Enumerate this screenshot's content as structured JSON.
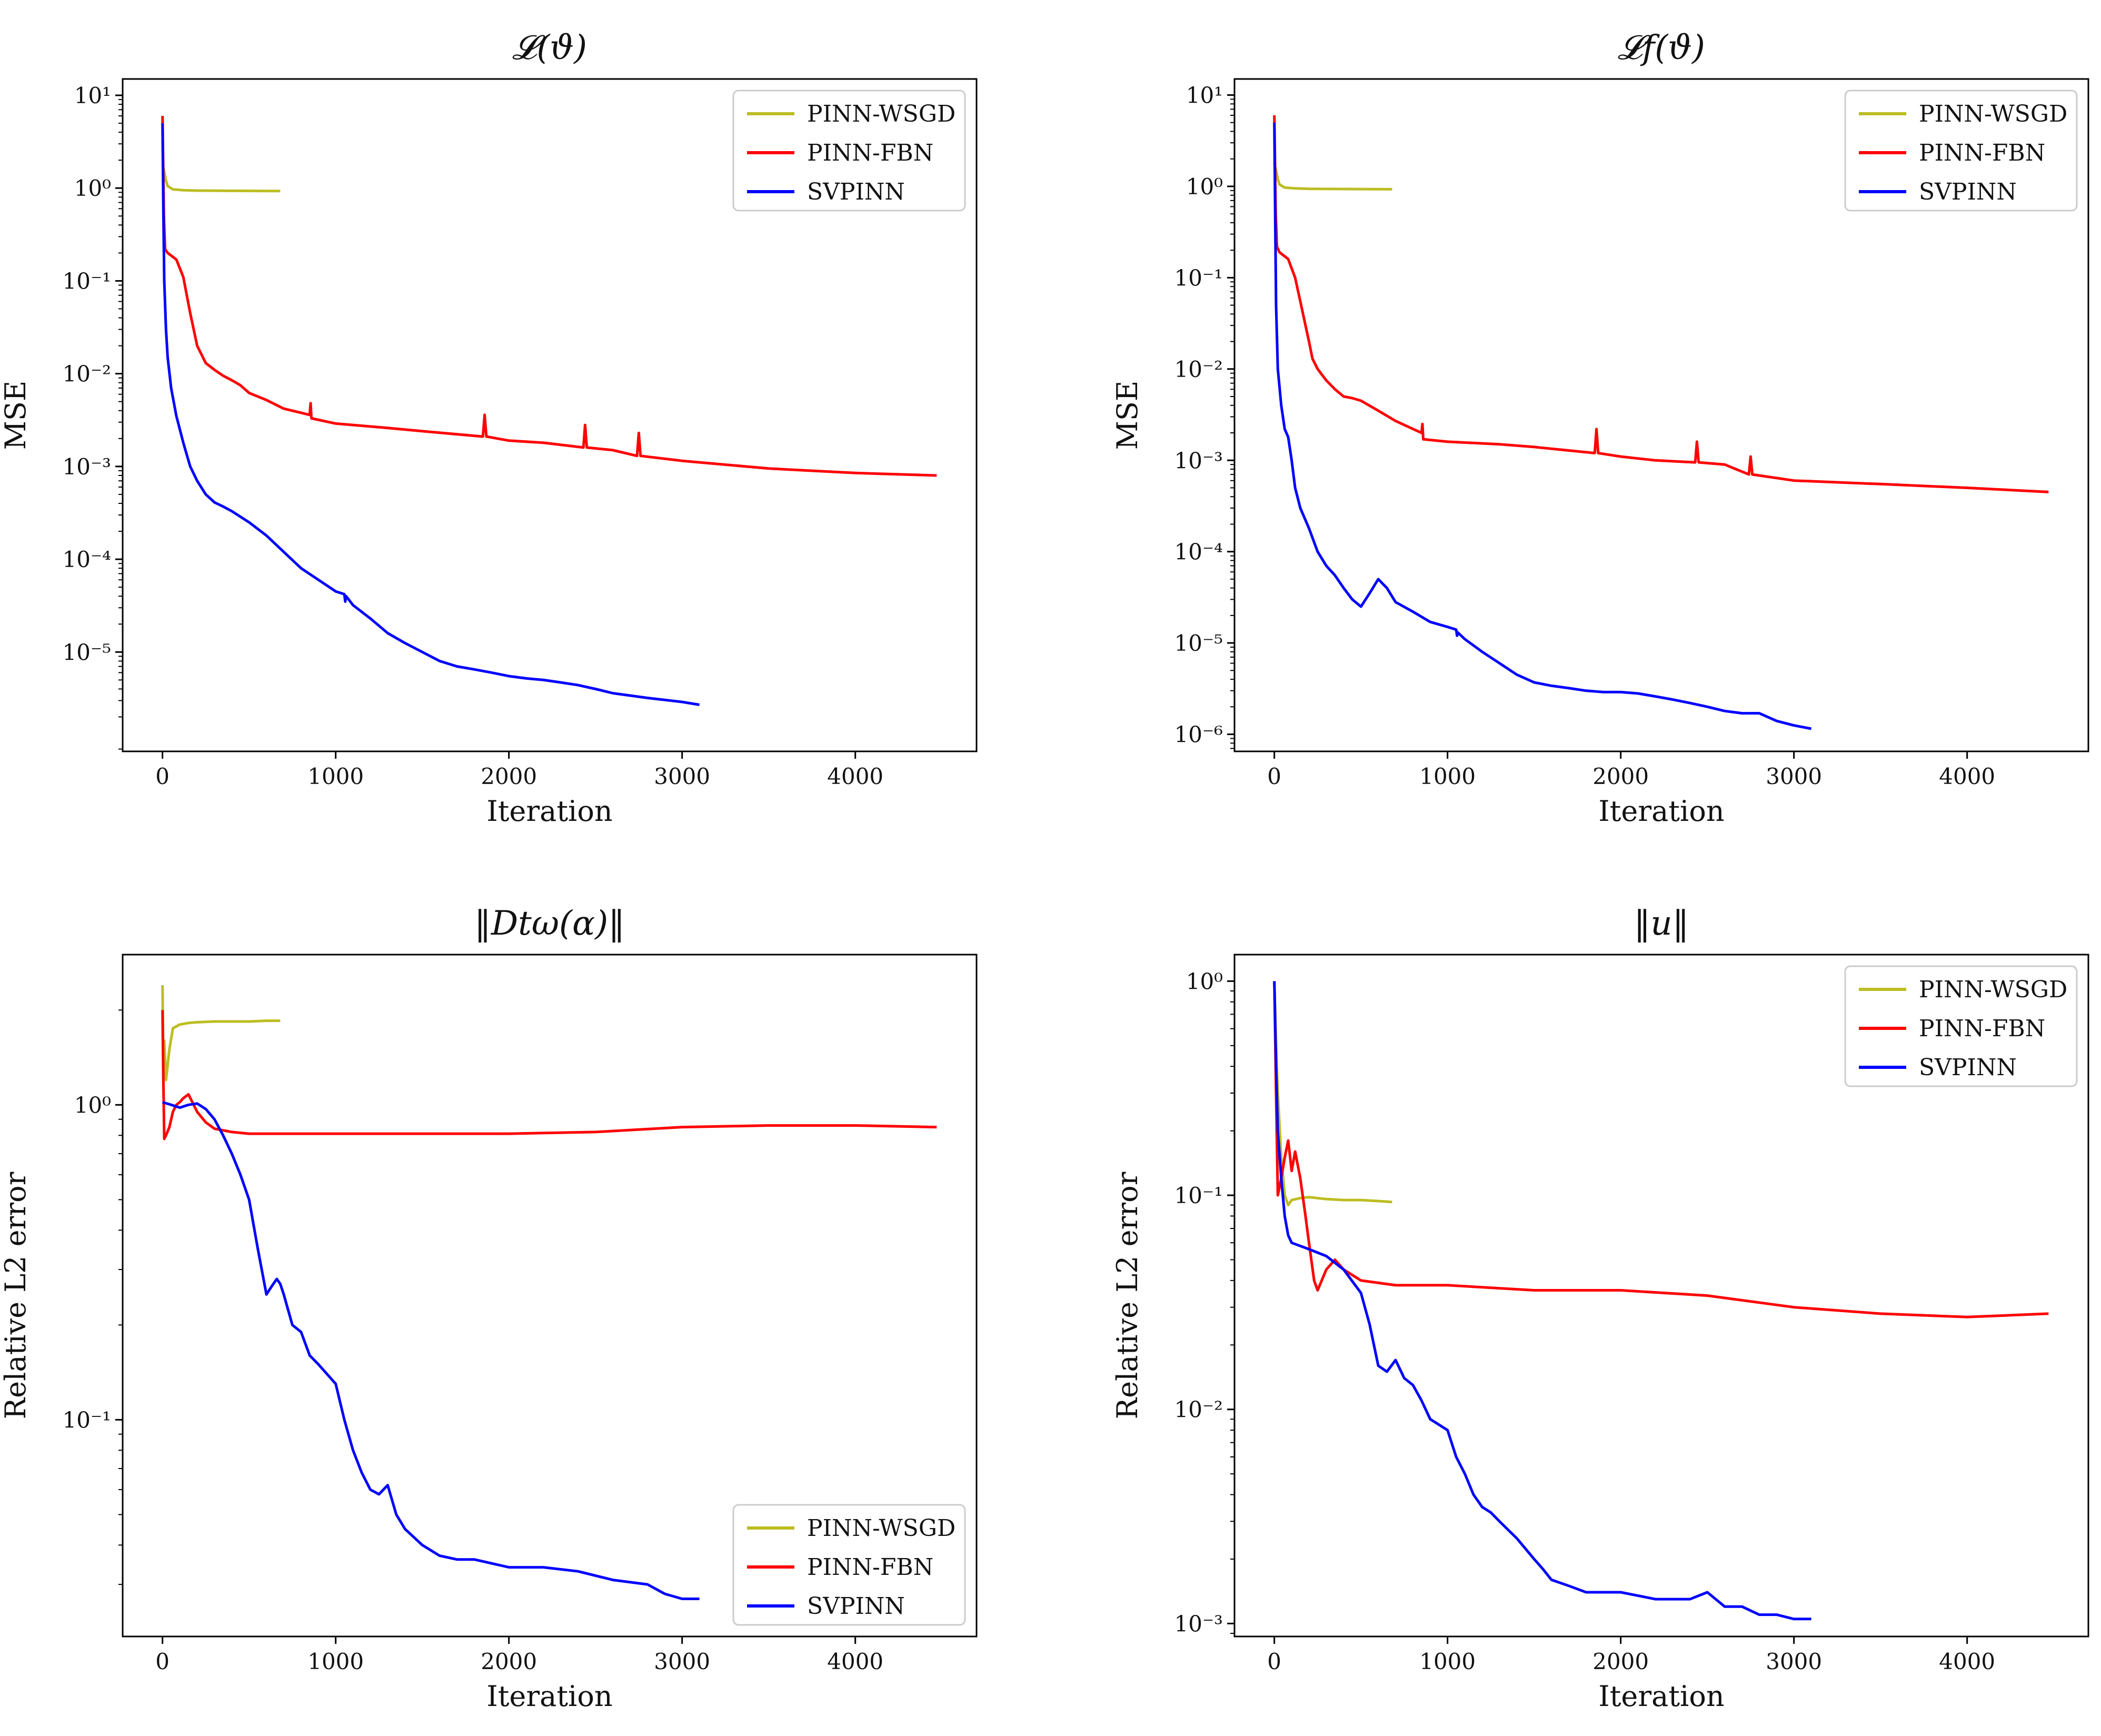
{
  "chart_data": [
    {
      "id": "p1",
      "type": "line",
      "yscale": "log",
      "title": "𝓛(ϑ)",
      "xlabel": "Iteration",
      "ylabel": "MSE",
      "xlim": [
        -230,
        4700
      ],
      "ylim": [
        8.5e-07,
        15
      ],
      "xticks": [
        0,
        1000,
        2000,
        3000,
        4000
      ],
      "yticks": [
        1,
        0,
        -1,
        -2,
        -3,
        -4,
        -5
      ],
      "legend_position": "top-right",
      "series": [
        {
          "name": "PINN-WSGD",
          "color": "#bcbd22",
          "x": [
            0,
            10,
            20,
            30,
            60,
            120,
            200,
            400,
            680
          ],
          "y": [
            1.8,
            1.5,
            1.2,
            1.05,
            0.97,
            0.95,
            0.94,
            0.935,
            0.93
          ]
        },
        {
          "name": "PINN-FBN",
          "color": "#ff0000",
          "x": [
            0,
            8,
            15,
            30,
            80,
            120,
            160,
            200,
            250,
            300,
            350,
            400,
            450,
            500,
            600,
            700,
            850,
            855,
            860,
            1000,
            1300,
            1500,
            1850,
            1860,
            1870,
            2000,
            2200,
            2430,
            2440,
            2450,
            2600,
            2740,
            2750,
            2760,
            3000,
            3500,
            4000,
            4470
          ],
          "y": [
            6.0,
            0.5,
            0.22,
            0.2,
            0.17,
            0.11,
            0.045,
            0.02,
            0.013,
            0.011,
            0.0095,
            0.0085,
            0.0075,
            0.0062,
            0.0052,
            0.0042,
            0.0036,
            0.0048,
            0.0033,
            0.0029,
            0.0026,
            0.0024,
            0.0021,
            0.0036,
            0.0021,
            0.0019,
            0.0018,
            0.0016,
            0.0028,
            0.0016,
            0.0015,
            0.0013,
            0.0023,
            0.0013,
            0.00115,
            0.00095,
            0.00085,
            0.0008
          ]
        },
        {
          "name": "SVPINN",
          "color": "#0000ff",
          "x": [
            0,
            5,
            10,
            20,
            30,
            50,
            80,
            120,
            160,
            200,
            250,
            300,
            350,
            400,
            500,
            600,
            700,
            800,
            900,
            1000,
            1050,
            1055,
            1060,
            1100,
            1200,
            1300,
            1400,
            1500,
            1600,
            1700,
            1800,
            1900,
            2000,
            2100,
            2200,
            2300,
            2400,
            2500,
            2600,
            2800,
            3000,
            3100
          ],
          "y": [
            5.0,
            0.6,
            0.1,
            0.03,
            0.015,
            0.007,
            0.0035,
            0.0018,
            0.001,
            0.0007,
            0.0005,
            0.00041,
            0.00037,
            0.00033,
            0.00025,
            0.00018,
            0.00012,
            8e-05,
            6e-05,
            4.5e-05,
            4.2e-05,
            3.5e-05,
            4e-05,
            3.2e-05,
            2.3e-05,
            1.6e-05,
            1.25e-05,
            1e-05,
            8e-06,
            7e-06,
            6.5e-06,
            6e-06,
            5.5e-06,
            5.2e-06,
            5e-06,
            4.7e-06,
            4.4e-06,
            4e-06,
            3.6e-06,
            3.2e-06,
            2.9e-06,
            2.7e-06
          ]
        }
      ]
    },
    {
      "id": "p2",
      "type": "line",
      "yscale": "log",
      "title": "𝓛f(ϑ)",
      "xlabel": "Iteration",
      "ylabel": "MSE",
      "xlim": [
        -230,
        4700
      ],
      "ylim": [
        6.5e-07,
        15
      ],
      "xticks": [
        0,
        1000,
        2000,
        3000,
        4000
      ],
      "yticks": [
        1,
        0,
        -1,
        -2,
        -3,
        -4,
        -5,
        -6
      ],
      "legend_position": "top-right",
      "series": [
        {
          "name": "PINN-WSGD",
          "color": "#bcbd22",
          "x": [
            0,
            10,
            20,
            30,
            60,
            120,
            200,
            400,
            680
          ],
          "y": [
            1.8,
            1.5,
            1.2,
            1.05,
            0.97,
            0.95,
            0.94,
            0.935,
            0.93
          ]
        },
        {
          "name": "PINN-FBN",
          "color": "#ff0000",
          "x": [
            0,
            8,
            15,
            30,
            80,
            120,
            160,
            200,
            220,
            250,
            300,
            350,
            400,
            450,
            500,
            600,
            700,
            850,
            855,
            860,
            1000,
            1300,
            1500,
            1850,
            1860,
            1870,
            2000,
            2200,
            2430,
            2440,
            2450,
            2600,
            2740,
            2750,
            2760,
            3000,
            3500,
            4000,
            4470
          ],
          "y": [
            6.0,
            0.5,
            0.22,
            0.19,
            0.16,
            0.1,
            0.045,
            0.02,
            0.013,
            0.01,
            0.0075,
            0.006,
            0.005,
            0.0048,
            0.0045,
            0.0035,
            0.0027,
            0.002,
            0.0025,
            0.0017,
            0.0016,
            0.0015,
            0.0014,
            0.0012,
            0.0022,
            0.0012,
            0.0011,
            0.001,
            0.00095,
            0.0016,
            0.00095,
            0.0009,
            0.0007,
            0.0011,
            0.0007,
            0.0006,
            0.00055,
            0.0005,
            0.00045
          ]
        },
        {
          "name": "SVPINN",
          "color": "#0000ff",
          "x": [
            0,
            5,
            10,
            20,
            40,
            60,
            80,
            100,
            120,
            150,
            200,
            250,
            300,
            350,
            400,
            450,
            500,
            550,
            600,
            650,
            700,
            800,
            900,
            1000,
            1050,
            1055,
            1060,
            1100,
            1200,
            1300,
            1400,
            1500,
            1600,
            1700,
            1800,
            1900,
            2000,
            2100,
            2200,
            2300,
            2400,
            2500,
            2600,
            2700,
            2800,
            2900,
            3000,
            3100
          ],
          "y": [
            5.0,
            0.5,
            0.05,
            0.01,
            0.004,
            0.0022,
            0.0018,
            0.001,
            0.0005,
            0.0003,
            0.00018,
            0.0001,
            7e-05,
            5.5e-05,
            4e-05,
            3e-05,
            2.5e-05,
            3.5e-05,
            5e-05,
            4e-05,
            2.8e-05,
            2.2e-05,
            1.7e-05,
            1.5e-05,
            1.4e-05,
            1.2e-05,
            1.3e-05,
            1.1e-05,
            8e-06,
            6e-06,
            4.5e-06,
            3.7e-06,
            3.4e-06,
            3.2e-06,
            3e-06,
            2.9e-06,
            2.9e-06,
            2.8e-06,
            2.6e-06,
            2.4e-06,
            2.2e-06,
            2e-06,
            1.8e-06,
            1.7e-06,
            1.7e-06,
            1.4e-06,
            1.25e-06,
            1.15e-06
          ]
        }
      ]
    },
    {
      "id": "p3",
      "type": "line",
      "yscale": "log",
      "title": "‖Dtω(α)‖",
      "xlabel": "Iteration",
      "ylabel": "Relative L2 error",
      "xlim": [
        -230,
        4700
      ],
      "ylim": [
        0.0205,
        3.0
      ],
      "xticks": [
        0,
        1000,
        2000,
        3000,
        4000
      ],
      "yticks": [
        0,
        -1
      ],
      "legend_position": "bottom-right",
      "series": [
        {
          "name": "PINN-WSGD",
          "color": "#bcbd22",
          "x": [
            0,
            5,
            10,
            20,
            40,
            60,
            100,
            150,
            200,
            300,
            400,
            500,
            600,
            680
          ],
          "y": [
            2.4,
            1.3,
            1.6,
            1.2,
            1.5,
            1.75,
            1.8,
            1.82,
            1.83,
            1.84,
            1.84,
            1.84,
            1.85,
            1.85
          ]
        },
        {
          "name": "PINN-FBN",
          "color": "#ff0000",
          "x": [
            0,
            5,
            10,
            20,
            40,
            60,
            80,
            100,
            120,
            150,
            180,
            200,
            250,
            300,
            400,
            500,
            700,
            1000,
            1500,
            2000,
            2500,
            3000,
            3500,
            4000,
            4470
          ],
          "y": [
            2.0,
            1.2,
            0.78,
            0.8,
            0.85,
            0.95,
            1.0,
            1.02,
            1.05,
            1.08,
            1.0,
            0.95,
            0.88,
            0.84,
            0.82,
            0.81,
            0.81,
            0.81,
            0.81,
            0.81,
            0.82,
            0.85,
            0.86,
            0.86,
            0.85
          ]
        },
        {
          "name": "SVPINN",
          "color": "#0000ff",
          "x": [
            0,
            50,
            100,
            150,
            200,
            250,
            300,
            350,
            400,
            450,
            500,
            550,
            600,
            620,
            640,
            660,
            680,
            700,
            750,
            800,
            850,
            900,
            1000,
            1050,
            1100,
            1150,
            1200,
            1250,
            1300,
            1350,
            1400,
            1500,
            1600,
            1700,
            1800,
            2000,
            2200,
            2400,
            2600,
            2800,
            2900,
            3000,
            3100
          ],
          "y": [
            1.02,
            1.0,
            0.98,
            1.0,
            1.01,
            0.97,
            0.9,
            0.8,
            0.7,
            0.6,
            0.5,
            0.35,
            0.25,
            0.26,
            0.27,
            0.28,
            0.27,
            0.25,
            0.2,
            0.19,
            0.16,
            0.15,
            0.13,
            0.1,
            0.08,
            0.068,
            0.06,
            0.058,
            0.062,
            0.05,
            0.045,
            0.04,
            0.037,
            0.036,
            0.036,
            0.034,
            0.034,
            0.033,
            0.031,
            0.03,
            0.028,
            0.027,
            0.027
          ]
        }
      ]
    },
    {
      "id": "p4",
      "type": "line",
      "yscale": "log",
      "title": "‖u‖",
      "xlabel": "Iteration",
      "ylabel": "Relative L2 error",
      "xlim": [
        -230,
        4700
      ],
      "ylim": [
        0.00087,
        1.33
      ],
      "xticks": [
        0,
        1000,
        2000,
        3000,
        4000
      ],
      "yticks": [
        0,
        -1,
        -2,
        -3
      ],
      "legend_position": "top-right",
      "series": [
        {
          "name": "PINN-WSGD",
          "color": "#bcbd22",
          "x": [
            0,
            10,
            20,
            40,
            60,
            80,
            100,
            150,
            200,
            300,
            400,
            500,
            600,
            680
          ],
          "y": [
            1.0,
            0.5,
            0.3,
            0.15,
            0.1,
            0.09,
            0.095,
            0.097,
            0.098,
            0.096,
            0.095,
            0.095,
            0.094,
            0.093
          ]
        },
        {
          "name": "PINN-FBN",
          "color": "#ff0000",
          "x": [
            0,
            10,
            20,
            40,
            60,
            80,
            100,
            120,
            150,
            180,
            200,
            230,
            250,
            300,
            350,
            400,
            500,
            700,
            1000,
            1500,
            2000,
            2500,
            3000,
            3500,
            4000,
            4470
          ],
          "y": [
            1.0,
            0.3,
            0.1,
            0.12,
            0.15,
            0.18,
            0.13,
            0.16,
            0.12,
            0.08,
            0.06,
            0.04,
            0.036,
            0.045,
            0.05,
            0.045,
            0.04,
            0.038,
            0.038,
            0.036,
            0.036,
            0.034,
            0.03,
            0.028,
            0.027,
            0.028
          ]
        },
        {
          "name": "SVPINN",
          "color": "#0000ff",
          "x": [
            0,
            10,
            20,
            40,
            60,
            80,
            100,
            150,
            200,
            300,
            400,
            500,
            550,
            600,
            650,
            700,
            750,
            800,
            850,
            900,
            1000,
            1050,
            1100,
            1150,
            1200,
            1250,
            1300,
            1400,
            1500,
            1550,
            1600,
            1700,
            1800,
            1900,
            2000,
            2200,
            2400,
            2500,
            2600,
            2700,
            2800,
            2900,
            3000,
            3100
          ],
          "y": [
            1.0,
            0.4,
            0.2,
            0.12,
            0.08,
            0.065,
            0.06,
            0.058,
            0.056,
            0.052,
            0.045,
            0.035,
            0.025,
            0.016,
            0.015,
            0.017,
            0.014,
            0.013,
            0.011,
            0.009,
            0.008,
            0.006,
            0.005,
            0.004,
            0.0035,
            0.0033,
            0.003,
            0.0025,
            0.002,
            0.0018,
            0.0016,
            0.0015,
            0.0014,
            0.0014,
            0.0014,
            0.0013,
            0.0013,
            0.0014,
            0.0012,
            0.0012,
            0.0011,
            0.0011,
            0.00105,
            0.00105
          ]
        }
      ]
    }
  ]
}
